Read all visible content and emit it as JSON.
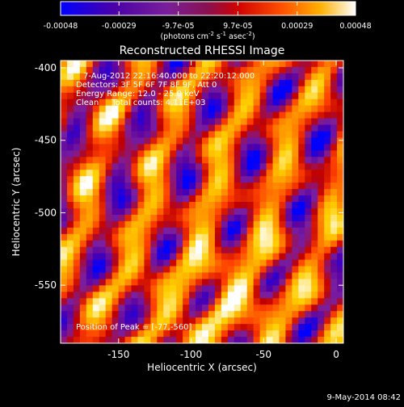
{
  "chart_data": {
    "type": "heatmap",
    "title": "Reconstructed RHESSI Image",
    "xlabel": "Heliocentric X (arcsec)",
    "ylabel": "Heliocentric Y (arcsec)",
    "xlim": [
      -190,
      5
    ],
    "ylim": [
      -590,
      -395
    ],
    "x_ticks": [
      -150,
      -100,
      -50,
      0
    ],
    "x_tick_labels": [
      "-150",
      "-100",
      "-50",
      "0"
    ],
    "y_ticks": [
      -400,
      -450,
      -500,
      -550
    ],
    "y_tick_labels": [
      "-400",
      "-450",
      "-500",
      "-550"
    ],
    "colorbar": {
      "ticks": [
        -0.00048,
        -0.00029,
        -9.7e-05,
        9.7e-05,
        0.00029,
        0.00048
      ],
      "tick_labels": [
        "-0.00048",
        "-0.00029",
        "-9.7e-05",
        "9.7e-05",
        "0.00029",
        "0.00048"
      ],
      "range": [
        -0.00048,
        0.00048
      ],
      "unit_label": "(photons cm-2 s-1 asec-2)",
      "colormap": [
        "#0000ff",
        "#5a00a0",
        "#7a1fa0",
        "#c00000",
        "#ff4000",
        "#ff9000",
        "#ffd000",
        "#ffffff"
      ]
    },
    "annotations": [
      "7-Aug-2012 22:16:40.000 to 22:20:12.000",
      "Detectors: 3F 5F 6F 7F 8F 9F, Att 0",
      "Energy Range: 12.0 - 25.0 keV",
      "Clean     Total counts: 4.11E+03"
    ],
    "peak_label": "Position of Peak = [-77,-560]",
    "peak": [
      -77,
      -560
    ],
    "grid": false
  },
  "footer": {
    "date": "9-May-2014 08:42"
  }
}
